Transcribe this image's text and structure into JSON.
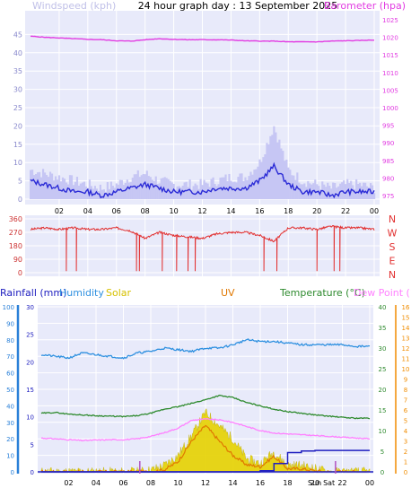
{
  "title": "24 hour graph day : 13 September 2025",
  "colors": {
    "panel_bg": "#e8eafa",
    "grid": "#ffffff",
    "wind_avg": "#2a2ad6",
    "wind_gust": "#c6c6f4",
    "barometer": "#e23ce2",
    "direction": "#e23030",
    "humidity": "#2e90e0",
    "temperature": "#2e8a2e",
    "dewpoint": "#ff80ff",
    "rainfall": "#2020c0",
    "solar": "#e6d200",
    "uv": "#e07800",
    "markers": "#b050c0",
    "rain_axis": "#2a80d8",
    "uv_axis": "#f08c00"
  },
  "x_ticks": [
    "02",
    "04",
    "06",
    "08",
    "10",
    "12",
    "14",
    "16",
    "18",
    "20",
    "22",
    "00"
  ],
  "chart_data": [
    {
      "type": "line",
      "panel": "wind-barometer",
      "title": "24 hour graph day : 13 September 2025",
      "left_axis_label": "Windspeed (kph)",
      "right_axis_label": "Barometer (hpa)",
      "left_ticks": [
        "0",
        "5",
        "10",
        "15",
        "20",
        "25",
        "30",
        "35",
        "40",
        "45"
      ],
      "right_ticks": [
        "975",
        "980",
        "985",
        "990",
        "995",
        "1000",
        "1005",
        "1010",
        "1015",
        "1020",
        "1025"
      ],
      "ylim_left": [
        0,
        50
      ],
      "ylim_right": [
        974,
        1026
      ],
      "x_hours": [
        0,
        1,
        2,
        3,
        4,
        5,
        6,
        7,
        8,
        9,
        10,
        11,
        12,
        13,
        14,
        15,
        16,
        17,
        18,
        19,
        20,
        21,
        22,
        23,
        24
      ],
      "series": [
        {
          "key": "gust",
          "axis": "left",
          "values": [
            8,
            7,
            6,
            5,
            4,
            3,
            4,
            6,
            7,
            5,
            4,
            4,
            4,
            5,
            6,
            6,
            10,
            20,
            8,
            5,
            4,
            3,
            4,
            4,
            3
          ]
        },
        {
          "key": "avg",
          "axis": "left",
          "values": [
            5,
            4,
            3,
            2,
            2,
            1,
            2,
            3,
            4,
            3,
            2,
            2,
            2,
            3,
            3,
            3,
            5,
            9,
            4,
            2,
            2,
            1,
            2,
            2,
            2
          ]
        },
        {
          "key": "baro",
          "axis": "right",
          "values": [
            1020.3,
            1020.0,
            1019.8,
            1019.6,
            1019.4,
            1019.3,
            1019.0,
            1018.9,
            1019.3,
            1019.6,
            1019.4,
            1019.3,
            1019.3,
            1019.3,
            1019.2,
            1019.0,
            1018.9,
            1018.9,
            1018.7,
            1018.7,
            1018.7,
            1018.9,
            1019.0,
            1019.1,
            1019.2
          ]
        }
      ]
    },
    {
      "type": "line",
      "panel": "wind-direction",
      "left_ticks": [
        "0",
        "90",
        "180",
        "270",
        "360"
      ],
      "right_ticks": [
        "N",
        "E",
        "S",
        "W",
        "N"
      ],
      "ylim": [
        0,
        360
      ],
      "x_hours": [
        0,
        1,
        2,
        3,
        4,
        5,
        6,
        7,
        8,
        9,
        10,
        11,
        12,
        13,
        14,
        15,
        16,
        17,
        18,
        19,
        20,
        21,
        22,
        23,
        24
      ],
      "values": [
        290,
        300,
        290,
        300,
        290,
        290,
        300,
        280,
        230,
        270,
        250,
        240,
        230,
        260,
        270,
        270,
        250,
        210,
        300,
        300,
        290,
        310,
        300,
        300,
        290
      ]
    },
    {
      "type": "line",
      "panel": "temperature-humidity-solar",
      "legend": [
        "Rainfall (mm)",
        "Humidity",
        "Solar",
        "UV",
        "Temperature (°C)",
        "Dew Point (°C)"
      ],
      "left_ticks_humidity": [
        "0",
        "10",
        "20",
        "30",
        "40",
        "50",
        "60",
        "70",
        "80",
        "90",
        "100"
      ],
      "left_ticks_rain": [
        "0",
        "5",
        "10",
        "15",
        "20",
        "25",
        "30"
      ],
      "right_ticks_temp": [
        "0",
        "5",
        "10",
        "15",
        "20",
        "25",
        "30",
        "35",
        "40"
      ],
      "right_ticks_uv": [
        "0",
        "1",
        "2",
        "3",
        "4",
        "5",
        "6",
        "7",
        "8",
        "9",
        "10",
        "11",
        "12",
        "13",
        "14",
        "15",
        "16"
      ],
      "x_tick_extra": "Sun",
      "x_tick_extra2": "Sat",
      "x_hours": [
        0,
        1,
        2,
        3,
        4,
        5,
        6,
        7,
        8,
        9,
        10,
        11,
        12,
        13,
        14,
        15,
        16,
        17,
        18,
        19,
        20,
        21,
        22,
        23,
        24
      ],
      "series": [
        {
          "key": "humidity",
          "axis": "humidity",
          "values": [
            71,
            70,
            69,
            72,
            71,
            70,
            69,
            72,
            73,
            75,
            74,
            73,
            75,
            75,
            77,
            80,
            79,
            79,
            78,
            77,
            77,
            77,
            77,
            76,
            76
          ]
        },
        {
          "key": "temperature",
          "axis": "temp",
          "values": [
            14.2,
            14.4,
            14.0,
            13.8,
            13.6,
            13.5,
            13.4,
            13.6,
            14.2,
            15.2,
            15.8,
            16.6,
            17.5,
            18.5,
            18.0,
            16.8,
            16.0,
            15.2,
            14.6,
            14.2,
            13.8,
            13.5,
            13.2,
            13.0,
            13.0
          ]
        },
        {
          "key": "dewpoint",
          "axis": "temp",
          "values": [
            8.2,
            8.0,
            7.8,
            7.6,
            7.7,
            7.8,
            7.8,
            8.0,
            8.6,
            9.5,
            10.6,
            12.5,
            12.8,
            12.6,
            12.0,
            11.0,
            10.0,
            9.4,
            9.2,
            9.0,
            8.8,
            8.6,
            8.4,
            8.2,
            8.0
          ]
        },
        {
          "key": "rainfall",
          "axis": "rain",
          "values": [
            0,
            0,
            0,
            0,
            0,
            0,
            0,
            0,
            0,
            0,
            0,
            0,
            0,
            0,
            0,
            0,
            0.2,
            1.5,
            3.5,
            3.8,
            3.9,
            3.9,
            3.9,
            3.9,
            3.9
          ]
        },
        {
          "key": "solar",
          "axis": "humidity",
          "values": [
            0,
            0,
            0,
            0,
            0,
            0,
            0,
            0,
            1,
            4,
            10,
            22,
            36,
            28,
            20,
            8,
            5,
            12,
            4,
            4,
            2,
            0,
            0,
            0,
            0
          ]
        },
        {
          "key": "uv",
          "axis": "uv",
          "values": [
            0,
            0,
            0,
            0,
            0,
            0,
            0,
            0,
            0,
            0.2,
            1,
            3,
            4.5,
            3,
            1.6,
            0.7,
            0.5,
            1.5,
            0.3,
            0.3,
            0.1,
            0,
            0,
            0,
            0
          ]
        }
      ],
      "marker_hours": [
        7.2,
        21.5
      ]
    }
  ]
}
